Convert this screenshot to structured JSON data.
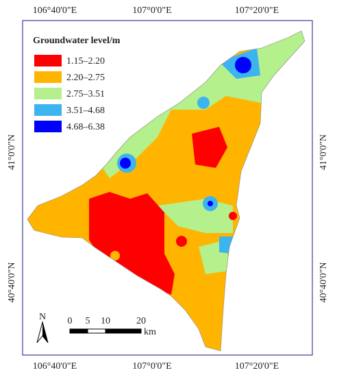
{
  "map": {
    "legend": {
      "title": "Groundwater level/m",
      "entries": [
        {
          "label": "1.15–2.20",
          "color": "#ff0000"
        },
        {
          "label": "2.20–2.75",
          "color": "#ffb400"
        },
        {
          "label": "2.75–3.51",
          "color": "#b4f08c"
        },
        {
          "label": "3.51–4.68",
          "color": "#3cb4f0"
        },
        {
          "label": "4.68–6.38",
          "color": "#0000ff"
        }
      ]
    },
    "top_labels": [
      "106°40'0\"E",
      "107°0'0\"E",
      "107°20'0\"E"
    ],
    "bottom_labels": [
      "106°40'0\"E",
      "107°0'0\"E",
      "107°20'0\"E"
    ],
    "left_labels": [
      "41°0'0\"N",
      "40°40'0\"N"
    ],
    "right_labels": [
      "41°0'0\"N",
      "40°40'0\"N"
    ],
    "north": "N",
    "scale": {
      "ticks": [
        "0",
        "5",
        "10",
        "20"
      ],
      "unit": "km"
    }
  }
}
